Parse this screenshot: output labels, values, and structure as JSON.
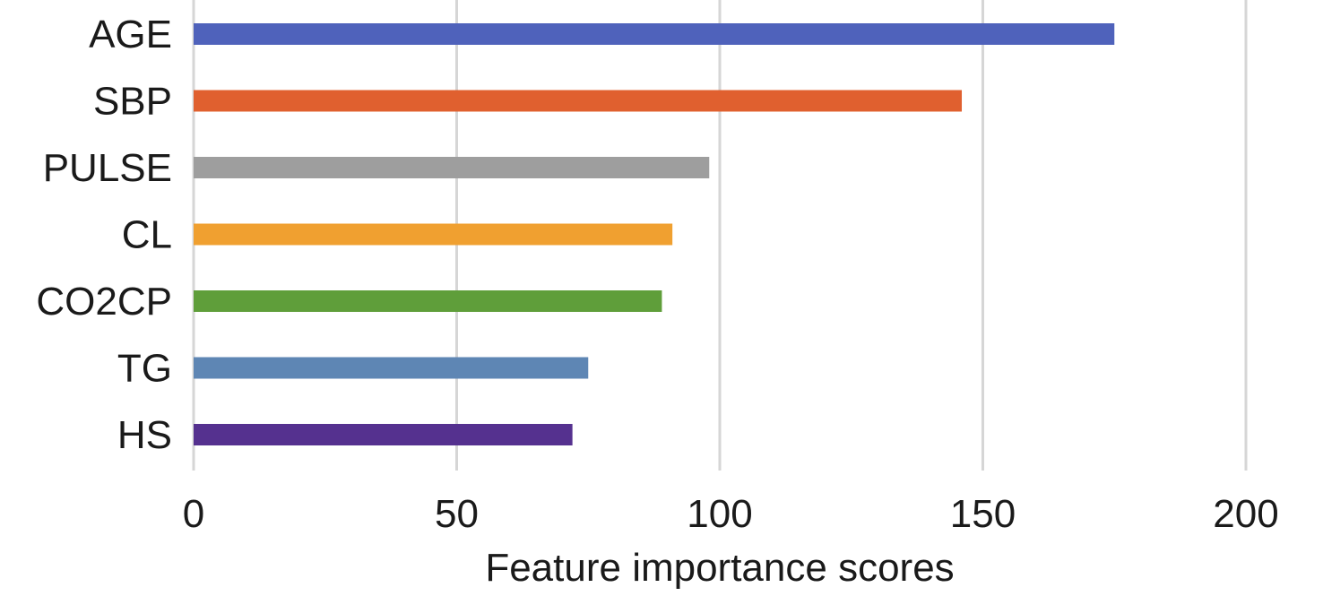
{
  "chart_data": {
    "type": "bar",
    "orientation": "horizontal",
    "title": "",
    "xlabel": "Feature importance scores",
    "ylabel": "",
    "xlim": [
      0,
      200
    ],
    "xticks": [
      0,
      50,
      100,
      150,
      200
    ],
    "grid": true,
    "legend": "none",
    "categories": [
      "AGE",
      "SBP",
      "PULSE",
      "CL",
      "CO2CP",
      "TG",
      "HS"
    ],
    "values": [
      175,
      146,
      98,
      91,
      89,
      75,
      72
    ],
    "colors": [
      "#4F62BB",
      "#E0602F",
      "#9E9E9E",
      "#F0A030",
      "#5F9E3A",
      "#5E86B4",
      "#55318F"
    ]
  }
}
